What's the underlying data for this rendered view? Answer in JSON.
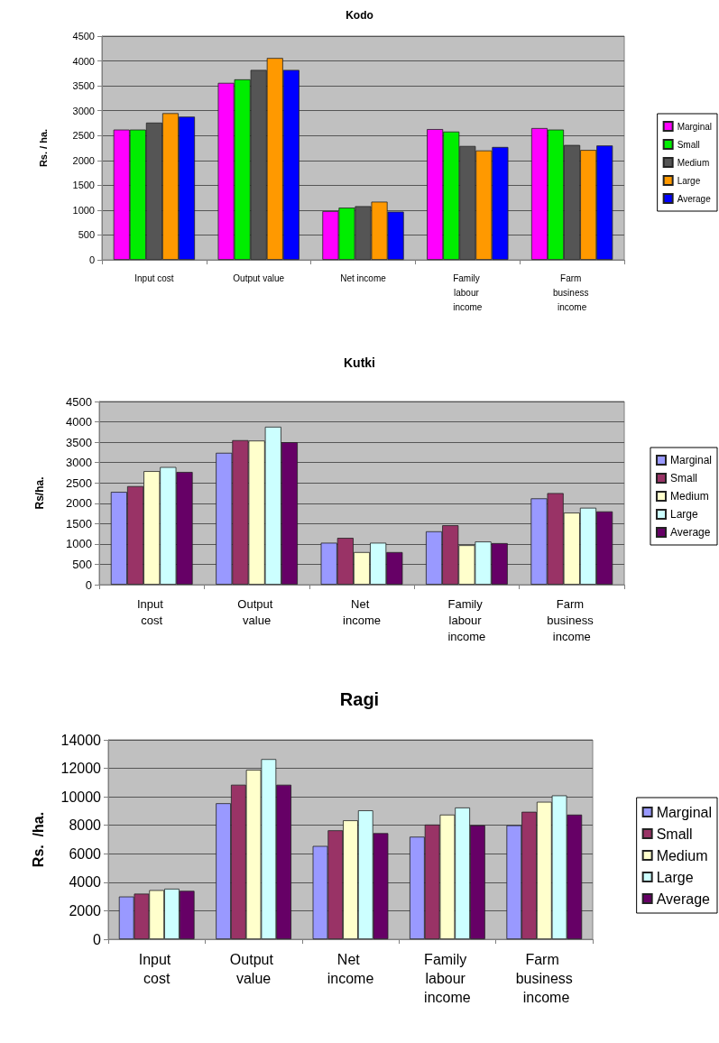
{
  "chart_data": [
    {
      "type": "bar",
      "title": "Kodo",
      "ylabel": "Rs. / ha.",
      "categories": [
        "Input cost",
        "Output value",
        "Net income",
        "Family labour income",
        "Farm business income"
      ],
      "series": [
        {
          "name": "Marginal",
          "color": "#ff00ff",
          "values": [
            2620,
            3560,
            980,
            2630,
            2650
          ]
        },
        {
          "name": "Small",
          "color": "#00ee00",
          "values": [
            2620,
            3630,
            1050,
            2580,
            2620
          ]
        },
        {
          "name": "Medium",
          "color": "#555555",
          "values": [
            2760,
            3820,
            1080,
            2290,
            2310
          ]
        },
        {
          "name": "Large",
          "color": "#ff9900",
          "values": [
            2950,
            4060,
            1170,
            2200,
            2210
          ]
        },
        {
          "name": "Average",
          "color": "#0000ff",
          "values": [
            2880,
            3820,
            970,
            2270,
            2300
          ]
        }
      ],
      "ylim": [
        0,
        4500
      ],
      "yticks": [
        0,
        500,
        1000,
        1500,
        2000,
        2500,
        3000,
        3500,
        4000,
        4500
      ],
      "grid": "y",
      "legend": "right"
    },
    {
      "type": "bar",
      "title": "Kutki",
      "ylabel": "Rs/ha.",
      "categories": [
        "Input cost",
        "Output value",
        "Net income",
        "Family labour income",
        "Farm business income"
      ],
      "series": [
        {
          "name": "Marginal",
          "color": "#9999ff",
          "values": [
            2280,
            3240,
            1030,
            1310,
            2120
          ]
        },
        {
          "name": "Small",
          "color": "#993366",
          "values": [
            2420,
            3550,
            1150,
            1460,
            2250
          ]
        },
        {
          "name": "Medium",
          "color": "#ffffcc",
          "values": [
            2790,
            3540,
            800,
            970,
            1770
          ]
        },
        {
          "name": "Large",
          "color": "#ccffff",
          "values": [
            2890,
            3880,
            1030,
            1060,
            1890
          ]
        },
        {
          "name": "Average",
          "color": "#660066",
          "values": [
            2770,
            3500,
            800,
            1020,
            1800
          ]
        }
      ],
      "ylim": [
        0,
        4500
      ],
      "yticks": [
        0,
        500,
        1000,
        1500,
        2000,
        2500,
        3000,
        3500,
        4000,
        4500
      ],
      "grid": "y",
      "legend": "right"
    },
    {
      "type": "bar",
      "title": "Ragi",
      "ylabel": "Rs.  /ha.",
      "categories": [
        "Input cost",
        "Output value",
        "Net income",
        "Family labour income",
        "Farm business income"
      ],
      "series": [
        {
          "name": "Marginal",
          "color": "#9999ff",
          "values": [
            3000,
            9550,
            6550,
            7200,
            8000
          ]
        },
        {
          "name": "Small",
          "color": "#993366",
          "values": [
            3200,
            10850,
            7650,
            8050,
            8950
          ]
        },
        {
          "name": "Medium",
          "color": "#ffffcc",
          "values": [
            3450,
            11900,
            8350,
            8750,
            9650
          ]
        },
        {
          "name": "Large",
          "color": "#ccffff",
          "values": [
            3550,
            12650,
            9050,
            9250,
            10100
          ]
        },
        {
          "name": "Average",
          "color": "#660066",
          "values": [
            3400,
            10850,
            7450,
            8000,
            8750
          ]
        }
      ],
      "ylim": [
        0,
        14000
      ],
      "yticks": [
        0,
        2000,
        4000,
        6000,
        8000,
        10000,
        12000,
        14000
      ],
      "grid": "y",
      "legend": "right"
    }
  ]
}
